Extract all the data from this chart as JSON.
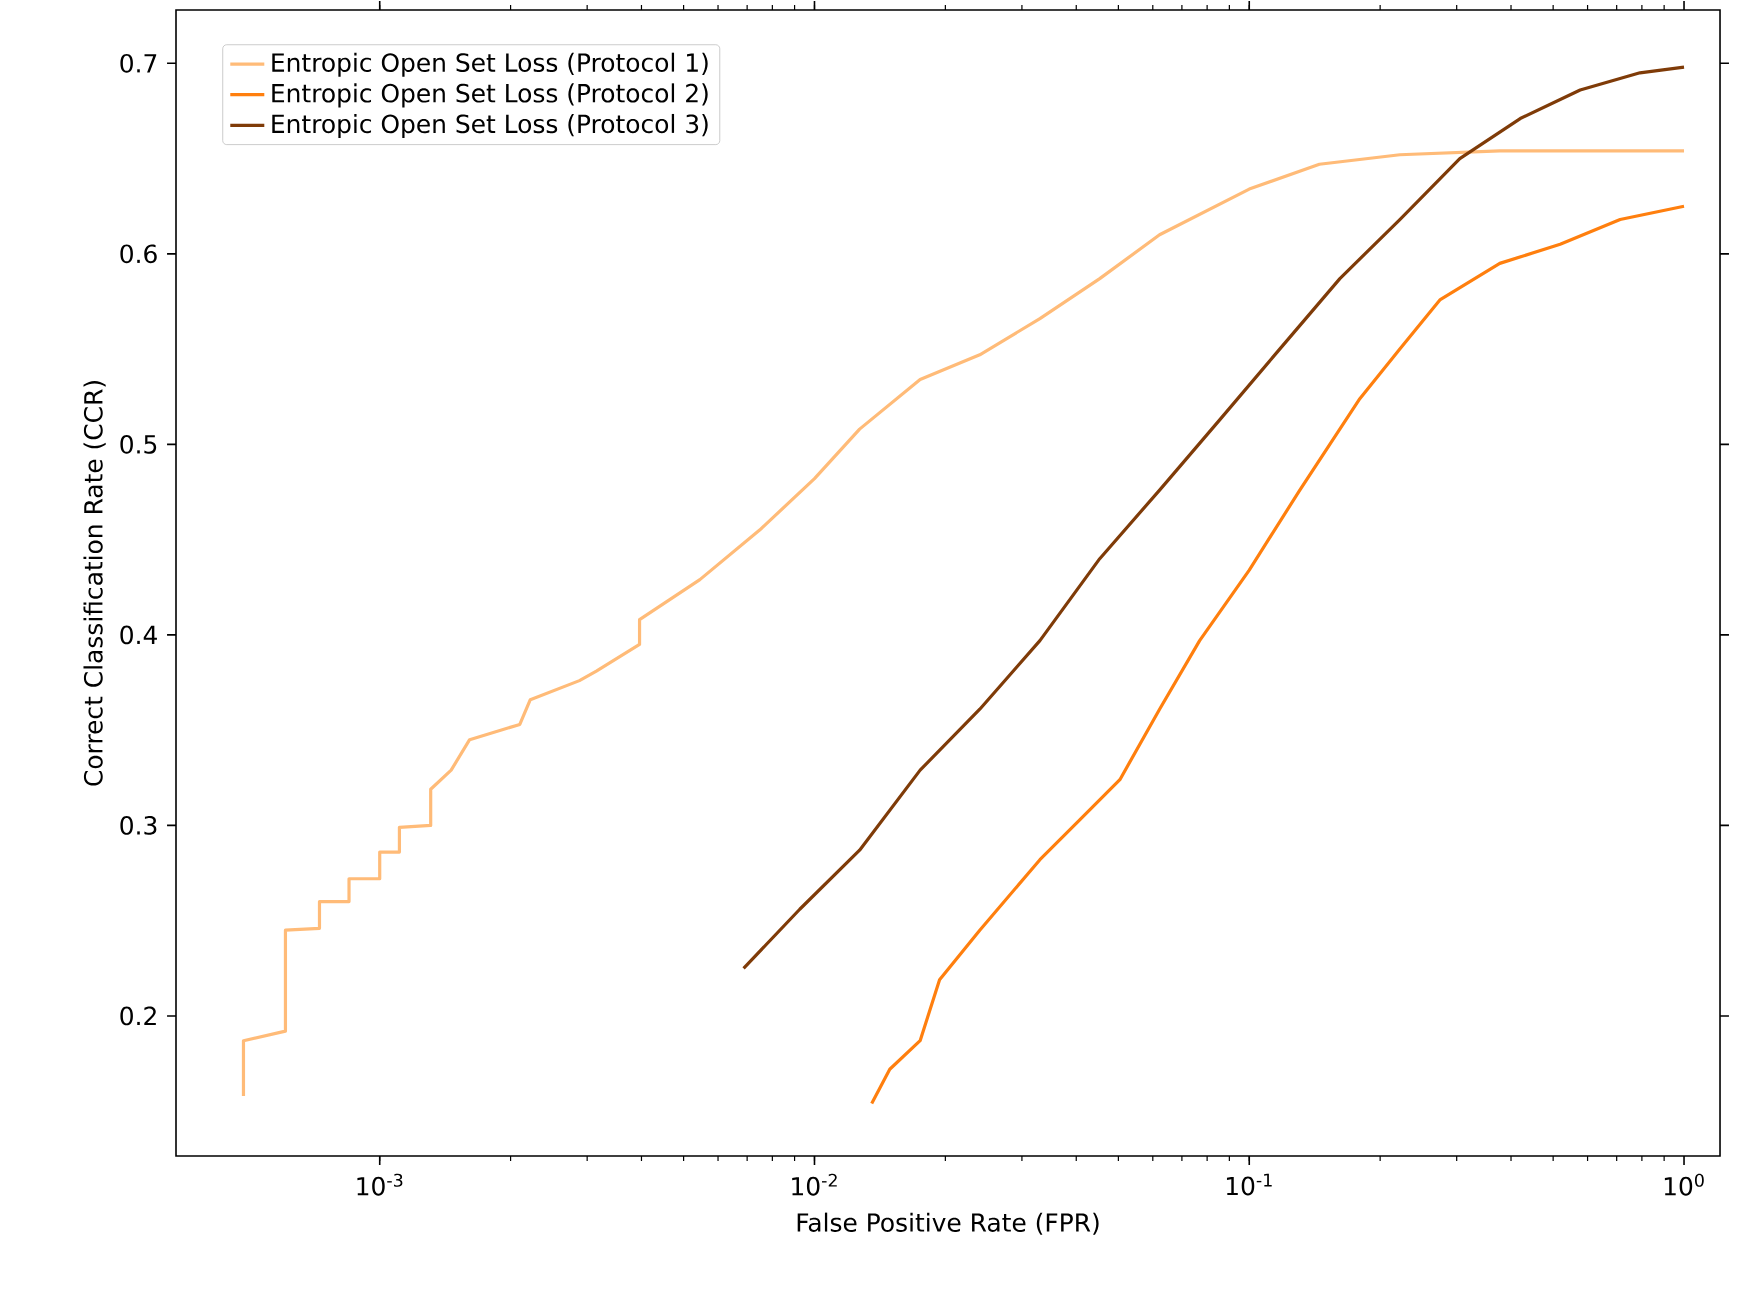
{
  "chart_data": {
    "type": "line",
    "xlabel": "False Positive Rate (FPR)",
    "ylabel": "Correct Classification Rate (CCR)",
    "log": "x",
    "xlim": [
      0.00034,
      1.21
    ],
    "ylim": [
      0.1265,
      0.728
    ],
    "xticks": [
      {
        "value": 0.001,
        "label": "10$^{-3}$"
      },
      {
        "value": 0.01,
        "label": "10$^{-2}$"
      },
      {
        "value": 0.1,
        "label": "10$^{-1}$"
      },
      {
        "value": 1,
        "label": "10$^{0}$"
      }
    ],
    "yticks": [
      0.2,
      0.3,
      0.4,
      0.5,
      0.6,
      0.7
    ],
    "grid": false,
    "legend": "top left",
    "marker": "none",
    "line_style": "solid",
    "series": [
      {
        "name": "Entropic Open Set Loss (Protocol 1)",
        "color": "#ffbb78",
        "x": [
          0.000486,
          0.000486,
          0.000607,
          0.000607,
          0.000727,
          0.000727,
          0.00085,
          0.00085,
          0.001,
          0.001,
          0.00111,
          0.00111,
          0.00131,
          0.00131,
          0.00146,
          0.00161,
          0.0021,
          0.00222,
          0.00288,
          0.00315,
          0.00396,
          0.00396,
          0.00545,
          0.00748,
          0.01,
          0.0127,
          0.0175,
          0.024,
          0.033,
          0.0453,
          0.0622,
          0.1,
          0.145,
          0.222,
          0.377,
          1
        ],
        "values": [
          0.158,
          0.187,
          0.192,
          0.245,
          0.246,
          0.26,
          0.26,
          0.272,
          0.272,
          0.286,
          0.286,
          0.299,
          0.3,
          0.319,
          0.329,
          0.345,
          0.353,
          0.366,
          0.376,
          0.381,
          0.395,
          0.408,
          0.429,
          0.455,
          0.482,
          0.508,
          0.534,
          0.547,
          0.566,
          0.587,
          0.61,
          0.634,
          0.647,
          0.652,
          0.654,
          0.654
        ]
      },
      {
        "name": "Entropic Open Set Loss (Protocol 2)",
        "color": "#ff7f0e",
        "x": [
          0.01354,
          0.0149,
          0.0175,
          0.0194,
          0.024,
          0.033,
          0.0408,
          0.0504,
          0.0622,
          0.0769,
          0.1,
          0.1307,
          0.1796,
          0.222,
          0.275,
          0.377,
          0.519,
          0.713,
          1
        ],
        "values": [
          0.154,
          0.172,
          0.187,
          0.219,
          0.245,
          0.282,
          0.303,
          0.324,
          0.361,
          0.397,
          0.434,
          0.476,
          0.524,
          0.55,
          0.576,
          0.595,
          0.605,
          0.618,
          0.625
        ]
      },
      {
        "name": "Entropic Open Set Loss (Protocol 3)",
        "color": "#7f3b08",
        "x": [
          0.00687,
          0.00925,
          0.0127,
          0.0175,
          0.024,
          0.033,
          0.0453,
          0.0622,
          0.0856,
          0.1175,
          0.1616,
          0.222,
          0.305,
          0.42,
          0.577,
          0.792,
          1
        ],
        "values": [
          0.225,
          0.256,
          0.287,
          0.329,
          0.361,
          0.397,
          0.44,
          0.476,
          0.513,
          0.55,
          0.587,
          0.618,
          0.65,
          0.671,
          0.686,
          0.695,
          0.698
        ]
      }
    ]
  }
}
